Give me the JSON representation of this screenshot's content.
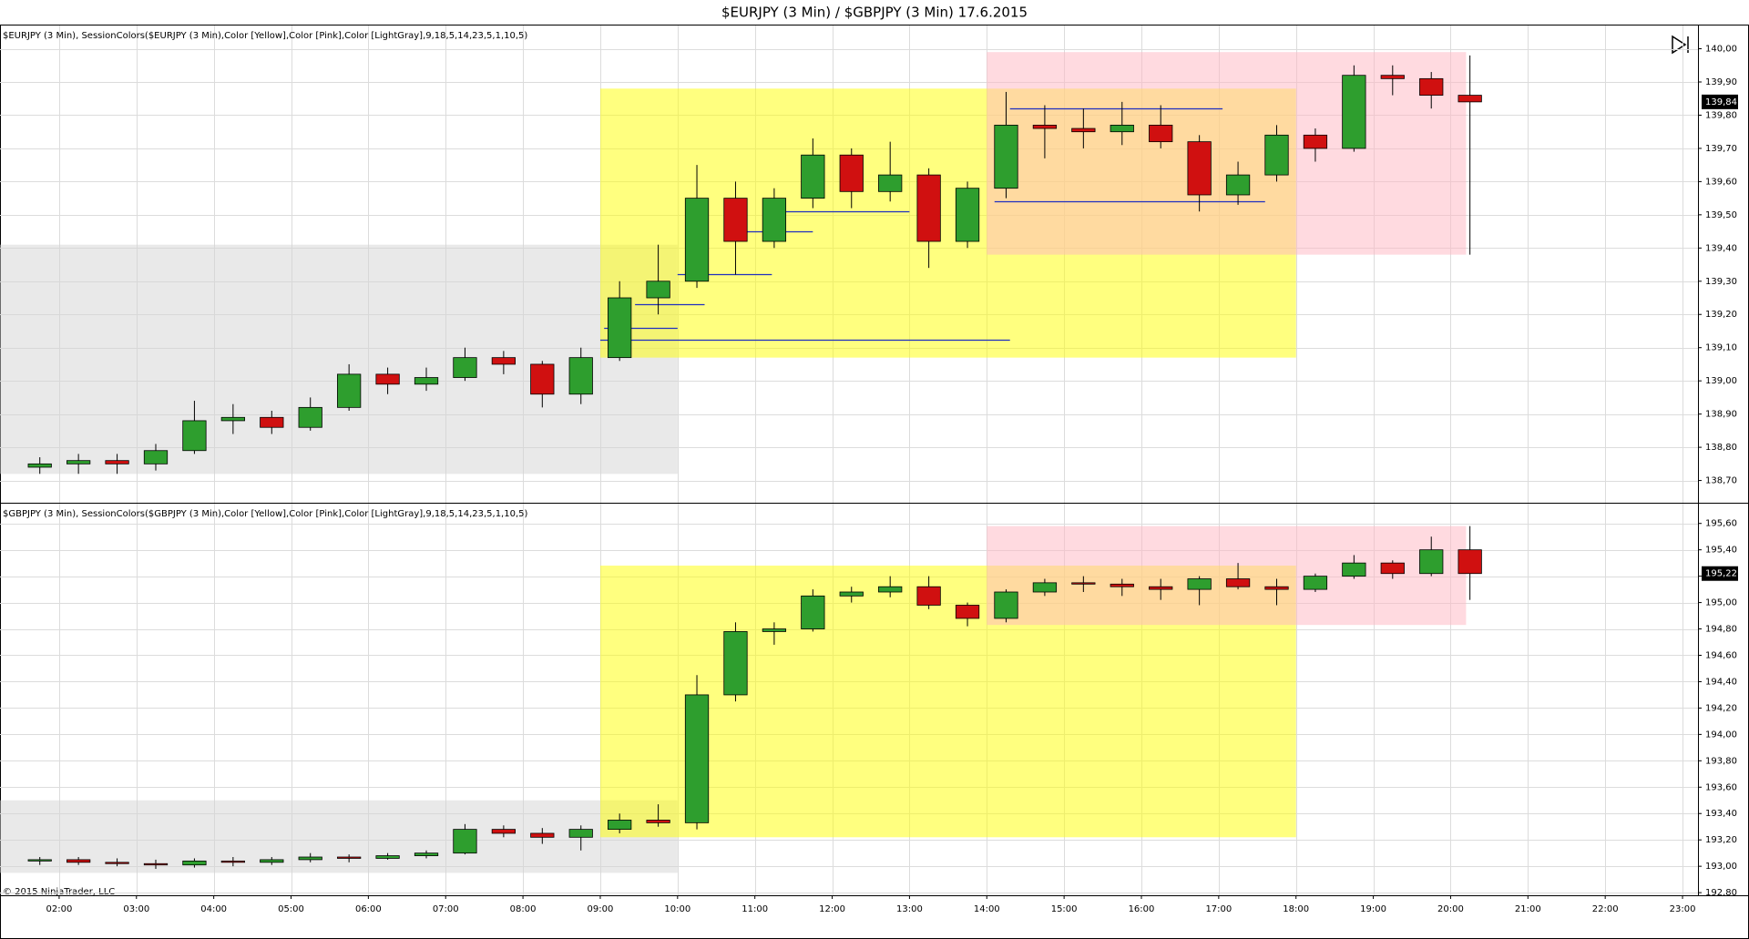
{
  "header": {
    "title": "$EURJPY (3 Min) / $GBPJPY (3 Min)  17.6.2015"
  },
  "footer": {
    "copyright": "© 2015 NinjaTrader, LLC"
  },
  "chart_data": [
    {
      "type": "candlestick",
      "label": "$EURJPY (3 Min), SessionColors($EURJPY (3 Min),Color [Yellow],Color [Pink],Color [LightGray],9,18,5,14,23,5,1,10,5)",
      "up_color": "#2e9e2e",
      "down_color": "#d01010",
      "grid": true,
      "xlim": [
        1.235,
        23.2
      ],
      "ylim": [
        138.633,
        140.07
      ],
      "yticks": [
        {
          "value": 138.7,
          "label": "138,70"
        },
        {
          "value": 138.8,
          "label": "138,80"
        },
        {
          "value": 138.9,
          "label": "138,90"
        },
        {
          "value": 139.0,
          "label": "139,00"
        },
        {
          "value": 139.1,
          "label": "139,10"
        },
        {
          "value": 139.2,
          "label": "139,20"
        },
        {
          "value": 139.3,
          "label": "139,30"
        },
        {
          "value": 139.4,
          "label": "139,40"
        },
        {
          "value": 139.5,
          "label": "139,50"
        },
        {
          "value": 139.6,
          "label": "139,60"
        },
        {
          "value": 139.7,
          "label": "139,70"
        },
        {
          "value": 139.8,
          "label": "139,80"
        },
        {
          "value": 139.9,
          "label": "139,90"
        },
        {
          "value": 140.0,
          "label": "140,00"
        }
      ],
      "last_price": {
        "value": 139.84,
        "label": "139,84"
      },
      "sessions": [
        {
          "color": "#d3d3d3",
          "start": 1.235,
          "end": 10.0,
          "high": 139.41,
          "low": 138.72
        },
        {
          "color": "#ffff00",
          "start": 9.0,
          "end": 18.0,
          "high": 139.88,
          "low": 139.07
        },
        {
          "color": "#ffb6c1",
          "start": 14.0,
          "end": 20.2,
          "high": 139.99,
          "low": 139.38
        }
      ],
      "levels_color": "#1f2fbf",
      "levels": [
        {
          "value": 139.82,
          "start": 14.3,
          "end": 17.05
        },
        {
          "value": 139.54,
          "start": 14.1,
          "end": 17.6
        },
        {
          "value": 139.125,
          "start": 9.0,
          "end": 14.3
        },
        {
          "value": 139.16,
          "start": 9.05,
          "end": 10.0
        },
        {
          "value": 139.23,
          "start": 9.45,
          "end": 10.35
        },
        {
          "value": 139.32,
          "start": 10.0,
          "end": 11.22
        },
        {
          "value": 139.45,
          "start": 10.75,
          "end": 11.75
        },
        {
          "value": 139.51,
          "start": 11.3,
          "end": 13.0
        }
      ],
      "x": [
        1.5,
        2.0,
        2.5,
        3.0,
        3.5,
        4.0,
        4.5,
        5.0,
        5.5,
        6.0,
        6.5,
        7.0,
        7.5,
        8.0,
        8.5,
        9.0,
        9.5,
        10.0,
        10.5,
        11.0,
        11.5,
        12.0,
        12.5,
        13.0,
        13.5,
        14.0,
        14.5,
        15.0,
        15.5,
        16.0,
        16.5,
        17.0,
        17.5,
        18.0,
        18.5,
        19.0,
        19.5,
        20.0
      ],
      "open": [
        138.74,
        138.75,
        138.76,
        138.75,
        138.79,
        138.88,
        138.89,
        138.86,
        138.92,
        139.02,
        138.99,
        139.01,
        139.07,
        139.05,
        138.96,
        139.07,
        139.25,
        139.3,
        139.55,
        139.42,
        139.55,
        139.68,
        139.57,
        139.62,
        139.42,
        139.58,
        139.77,
        139.76,
        139.75,
        139.77,
        139.72,
        139.56,
        139.62,
        139.74,
        139.7,
        139.92,
        139.91,
        139.86
      ],
      "high": [
        138.77,
        138.78,
        138.78,
        138.81,
        138.94,
        138.93,
        138.91,
        138.95,
        139.05,
        139.04,
        139.04,
        139.1,
        139.09,
        139.06,
        139.1,
        139.3,
        139.41,
        139.65,
        139.6,
        139.58,
        139.73,
        139.7,
        139.72,
        139.64,
        139.6,
        139.87,
        139.83,
        139.82,
        139.84,
        139.83,
        139.74,
        139.66,
        139.77,
        139.76,
        139.95,
        139.95,
        139.93,
        139.98
      ],
      "low": [
        138.72,
        138.72,
        138.72,
        138.73,
        138.78,
        138.84,
        138.84,
        138.85,
        138.91,
        138.96,
        138.97,
        139.0,
        139.02,
        138.92,
        138.93,
        139.06,
        139.2,
        139.28,
        139.32,
        139.4,
        139.52,
        139.52,
        139.54,
        139.34,
        139.4,
        139.55,
        139.67,
        139.7,
        139.71,
        139.7,
        139.51,
        139.53,
        139.6,
        139.66,
        139.69,
        139.86,
        139.82,
        139.38
      ],
      "close": [
        138.75,
        138.76,
        138.75,
        138.79,
        138.88,
        138.89,
        138.86,
        138.92,
        139.02,
        138.99,
        139.01,
        139.07,
        139.05,
        138.96,
        139.07,
        139.25,
        139.3,
        139.55,
        139.42,
        139.55,
        139.68,
        139.57,
        139.62,
        139.42,
        139.58,
        139.77,
        139.76,
        139.75,
        139.77,
        139.72,
        139.56,
        139.62,
        139.74,
        139.7,
        139.92,
        139.91,
        139.86,
        139.84
      ]
    },
    {
      "type": "candlestick",
      "label": "$GBPJPY (3 Min), SessionColors($GBPJPY (3 Min),Color [Yellow],Color [Pink],Color [LightGray],9,18,5,14,23,5,1,10,5)",
      "up_color": "#2e9e2e",
      "down_color": "#d01010",
      "grid": true,
      "xlim": [
        1.235,
        23.2
      ],
      "xticks": [
        {
          "value": 2,
          "label": "02:00"
        },
        {
          "value": 3,
          "label": "03:00"
        },
        {
          "value": 4,
          "label": "04:00"
        },
        {
          "value": 5,
          "label": "05:00"
        },
        {
          "value": 6,
          "label": "06:00"
        },
        {
          "value": 7,
          "label": "07:00"
        },
        {
          "value": 8,
          "label": "08:00"
        },
        {
          "value": 9,
          "label": "09:00"
        },
        {
          "value": 10,
          "label": "10:00"
        },
        {
          "value": 11,
          "label": "11:00"
        },
        {
          "value": 12,
          "label": "12:00"
        },
        {
          "value": 13,
          "label": "13:00"
        },
        {
          "value": 14,
          "label": "14:00"
        },
        {
          "value": 15,
          "label": "15:00"
        },
        {
          "value": 16,
          "label": "16:00"
        },
        {
          "value": 17,
          "label": "17:00"
        },
        {
          "value": 18,
          "label": "18:00"
        },
        {
          "value": 19,
          "label": "19:00"
        },
        {
          "value": 20,
          "label": "20:00"
        },
        {
          "value": 21,
          "label": "21:00"
        },
        {
          "value": 22,
          "label": "22:00"
        },
        {
          "value": 23,
          "label": "23:00"
        }
      ],
      "ylim": [
        192.78,
        195.75
      ],
      "yticks": [
        {
          "value": 192.8,
          "label": "192,80"
        },
        {
          "value": 193.0,
          "label": "193,00"
        },
        {
          "value": 193.2,
          "label": "193,20"
        },
        {
          "value": 193.4,
          "label": "193,40"
        },
        {
          "value": 193.6,
          "label": "193,60"
        },
        {
          "value": 193.8,
          "label": "193,80"
        },
        {
          "value": 194.0,
          "label": "194,00"
        },
        {
          "value": 194.2,
          "label": "194,20"
        },
        {
          "value": 194.4,
          "label": "194,40"
        },
        {
          "value": 194.6,
          "label": "194,60"
        },
        {
          "value": 194.8,
          "label": "194,80"
        },
        {
          "value": 195.0,
          "label": "195,00"
        },
        {
          "value": 195.2,
          "label": "195,20"
        },
        {
          "value": 195.4,
          "label": "195,40"
        },
        {
          "value": 195.6,
          "label": "195,60"
        }
      ],
      "last_price": {
        "value": 195.22,
        "label": "195,22"
      },
      "sessions": [
        {
          "color": "#d3d3d3",
          "start": 1.235,
          "end": 10.0,
          "high": 193.5,
          "low": 192.95
        },
        {
          "color": "#ffff00",
          "start": 9.0,
          "end": 18.0,
          "high": 195.28,
          "low": 193.22
        },
        {
          "color": "#ffb6c1",
          "start": 14.0,
          "end": 20.2,
          "high": 195.58,
          "low": 194.83
        }
      ],
      "x": [
        1.5,
        2.0,
        2.5,
        3.0,
        3.5,
        4.0,
        4.5,
        5.0,
        5.5,
        6.0,
        6.5,
        7.0,
        7.5,
        8.0,
        8.5,
        9.0,
        9.5,
        10.0,
        10.5,
        11.0,
        11.5,
        12.0,
        12.5,
        13.0,
        13.5,
        14.0,
        14.5,
        15.0,
        15.5,
        16.0,
        16.5,
        17.0,
        17.5,
        18.0,
        18.5,
        19.0,
        19.5,
        20.0
      ],
      "open": [
        193.04,
        193.05,
        193.03,
        193.02,
        193.01,
        193.04,
        193.03,
        193.05,
        193.07,
        193.06,
        193.08,
        193.1,
        193.28,
        193.25,
        193.22,
        193.28,
        193.35,
        193.33,
        194.3,
        194.78,
        194.8,
        195.05,
        195.08,
        195.12,
        194.98,
        194.88,
        195.08,
        195.15,
        195.14,
        195.12,
        195.1,
        195.18,
        195.12,
        195.1,
        195.2,
        195.3,
        195.22,
        195.4
      ],
      "high": [
        193.07,
        193.07,
        193.06,
        193.05,
        193.06,
        193.07,
        193.07,
        193.1,
        193.09,
        193.1,
        193.12,
        193.32,
        193.31,
        193.29,
        193.31,
        193.4,
        193.47,
        194.45,
        194.85,
        194.85,
        195.1,
        195.12,
        195.2,
        195.2,
        195.0,
        195.1,
        195.18,
        195.2,
        195.18,
        195.18,
        195.2,
        195.3,
        195.18,
        195.22,
        195.36,
        195.32,
        195.5,
        195.58
      ],
      "low": [
        193.01,
        193.01,
        193.0,
        192.98,
        192.99,
        193.0,
        193.01,
        193.03,
        193.03,
        193.05,
        193.06,
        193.09,
        193.22,
        193.17,
        193.12,
        193.25,
        193.3,
        193.28,
        194.25,
        194.68,
        194.78,
        195.0,
        195.04,
        194.95,
        194.82,
        194.85,
        195.05,
        195.08,
        195.05,
        195.02,
        194.98,
        195.1,
        194.98,
        195.08,
        195.18,
        195.18,
        195.2,
        195.02
      ],
      "close": [
        193.05,
        193.03,
        193.02,
        193.01,
        193.04,
        193.03,
        193.05,
        193.07,
        193.06,
        193.08,
        193.1,
        193.28,
        193.25,
        193.22,
        193.28,
        193.35,
        193.33,
        194.3,
        194.78,
        194.8,
        195.05,
        195.08,
        195.12,
        194.98,
        194.88,
        195.08,
        195.15,
        195.14,
        195.12,
        195.1,
        195.18,
        195.12,
        195.1,
        195.2,
        195.3,
        195.22,
        195.4,
        195.22
      ]
    }
  ]
}
